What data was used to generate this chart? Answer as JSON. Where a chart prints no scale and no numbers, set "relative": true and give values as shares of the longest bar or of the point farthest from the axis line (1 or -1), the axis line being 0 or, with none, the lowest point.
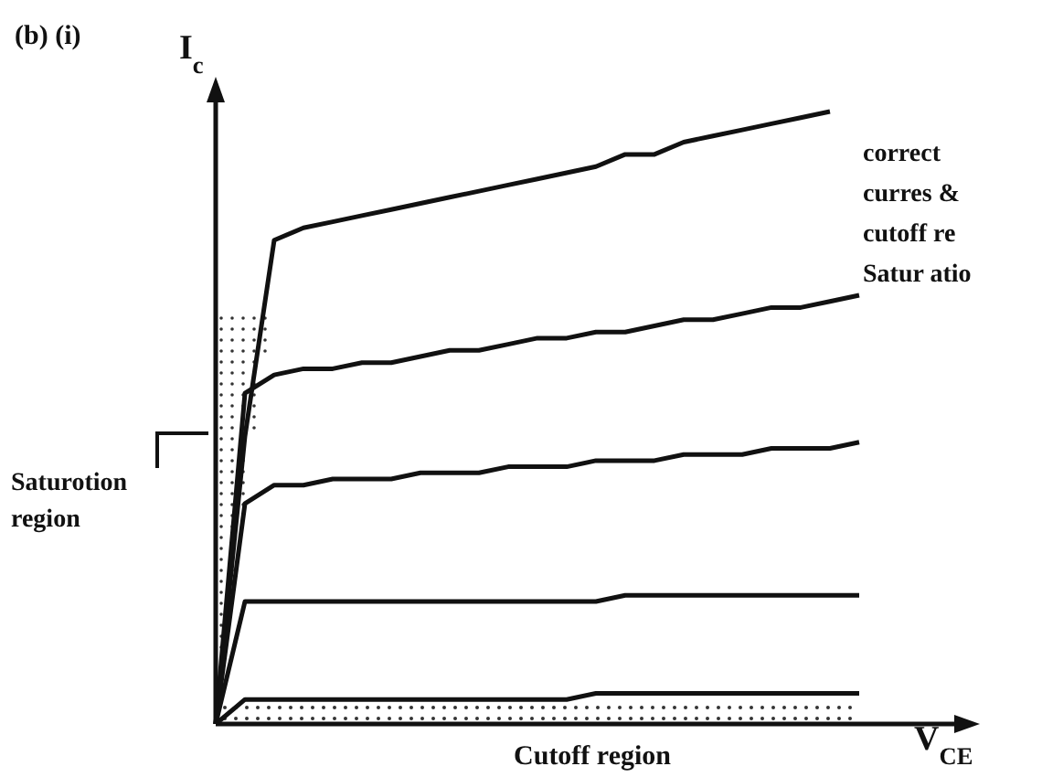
{
  "chart_data": {
    "type": "line",
    "relative": true,
    "title": "(b) (i)",
    "ylabel": "I$_{c}$",
    "xlabel": "V$_{CE}$",
    "grid": false,
    "marker": "none",
    "line_style": "solid",
    "tick_labels": false,
    "categories": [
      null,
      null,
      null,
      null,
      null,
      null,
      null,
      null,
      null,
      null,
      null,
      null,
      null,
      null,
      null,
      null,
      null,
      null,
      null,
      null,
      null,
      null,
      null
    ],
    "series": [
      {
        "color": "#111111",
        "values": [
          0,
          0.47,
          0.79,
          0.81,
          0.82,
          0.83,
          0.84,
          0.85,
          0.86,
          0.87,
          0.88,
          0.89,
          0.9,
          0.91,
          0.93,
          0.93,
          0.95,
          0.96,
          0.97,
          0.98,
          0.99,
          1.0,
          null
        ]
      },
      {
        "color": "#111111",
        "values": [
          0,
          0.54,
          0.57,
          0.58,
          0.58,
          0.59,
          0.59,
          0.6,
          0.61,
          0.61,
          0.62,
          0.63,
          0.63,
          0.64,
          0.64,
          0.65,
          0.66,
          0.66,
          0.67,
          0.68,
          0.68,
          0.69,
          0.7
        ]
      },
      {
        "color": "#111111",
        "values": [
          0,
          0.36,
          0.39,
          0.39,
          0.4,
          0.4,
          0.4,
          0.41,
          0.41,
          0.41,
          0.42,
          0.42,
          0.42,
          0.43,
          0.43,
          0.43,
          0.44,
          0.44,
          0.44,
          0.45,
          0.45,
          0.45,
          0.46
        ]
      },
      {
        "color": "#111111",
        "values": [
          0,
          0.2,
          0.2,
          0.2,
          0.2,
          0.2,
          0.2,
          0.2,
          0.2,
          0.2,
          0.2,
          0.2,
          0.2,
          0.2,
          0.21,
          0.21,
          0.21,
          0.21,
          0.21,
          0.21,
          0.21,
          0.21,
          0.21
        ]
      },
      {
        "color": "#111111",
        "values": [
          0,
          0.04,
          0.04,
          0.04,
          0.04,
          0.04,
          0.04,
          0.04,
          0.04,
          0.04,
          0.04,
          0.04,
          0.04,
          0.05,
          0.05,
          0.05,
          0.05,
          0.05,
          0.05,
          0.05,
          0.05,
          0.05,
          0.05
        ]
      }
    ],
    "bands": [
      {
        "axis": "y",
        "from": 0,
        "to": 0.03,
        "label": "Cutoff region"
      }
    ],
    "annotations": [
      "Saturotion region",
      "correct",
      "curres &",
      "cutoff re",
      "Satur atio"
    ]
  }
}
